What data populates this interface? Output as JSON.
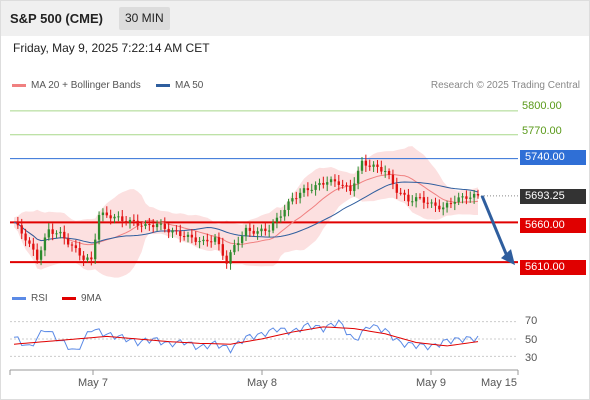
{
  "header": {
    "title": "S&P 500 (CME)",
    "interval": "30 MIN"
  },
  "timestamp": "Friday, May 9, 2025 7:22:14 AM CET",
  "legend": {
    "ma20": "MA 20 + Bollinger Bands",
    "ma50": "MA 50",
    "rsi": "RSI",
    "ma9": "9MA"
  },
  "credit": "Research © 2025 Trading Central",
  "colors": {
    "ma20": "#f08080",
    "ma50": "#2f5e9e",
    "rsi": "#5b8ae6",
    "ma9": "#e00000",
    "resistance_green": "#a8d88a",
    "pivot_blue": "#2f6fd6",
    "support_red": "#e00000",
    "last_price": "#333333",
    "candle_up": "#2e8b2e",
    "candle_down": "#e01010"
  },
  "levels": {
    "r2": "5800.00",
    "r1": "5770.00",
    "pivot": "5740.00",
    "last": "5693.25",
    "s1": "5660.00",
    "s2": "5610.00"
  },
  "rsi_ticks": [
    "70",
    "50",
    "30"
  ],
  "x_labels": [
    "May 7",
    "May 8",
    "May 9",
    "May 15"
  ],
  "chart_data": {
    "type": "candlestick",
    "title": "S&P 500 (CME)",
    "interval": "30 MIN",
    "y_range": [
      5585,
      5820
    ],
    "levels": [
      {
        "value": 5800,
        "kind": "resistance"
      },
      {
        "value": 5770,
        "kind": "resistance"
      },
      {
        "value": 5740,
        "kind": "pivot"
      },
      {
        "value": 5660,
        "kind": "support"
      },
      {
        "value": 5610,
        "kind": "support"
      }
    ],
    "last_price": 5693.25,
    "close_path": [
      {
        "x": 0,
        "y": 5660
      },
      {
        "x": 3,
        "y": 5640
      },
      {
        "x": 6,
        "y": 5615
      },
      {
        "x": 9,
        "y": 5650
      },
      {
        "x": 12,
        "y": 5645
      },
      {
        "x": 15,
        "y": 5630
      },
      {
        "x": 18,
        "y": 5615
      },
      {
        "x": 20,
        "y": 5612
      },
      {
        "x": 22,
        "y": 5670
      },
      {
        "x": 25,
        "y": 5668
      },
      {
        "x": 28,
        "y": 5663
      },
      {
        "x": 31,
        "y": 5660
      },
      {
        "x": 34,
        "y": 5655
      },
      {
        "x": 37,
        "y": 5658
      },
      {
        "x": 40,
        "y": 5650
      },
      {
        "x": 43,
        "y": 5645
      },
      {
        "x": 46,
        "y": 5640
      },
      {
        "x": 49,
        "y": 5635
      },
      {
        "x": 52,
        "y": 5640
      },
      {
        "x": 55,
        "y": 5610
      },
      {
        "x": 57,
        "y": 5630
      },
      {
        "x": 60,
        "y": 5650
      },
      {
        "x": 63,
        "y": 5648
      },
      {
        "x": 66,
        "y": 5652
      },
      {
        "x": 69,
        "y": 5670
      },
      {
        "x": 72,
        "y": 5690
      },
      {
        "x": 75,
        "y": 5700
      },
      {
        "x": 78,
        "y": 5705
      },
      {
        "x": 81,
        "y": 5712
      },
      {
        "x": 84,
        "y": 5710
      },
      {
        "x": 87,
        "y": 5700
      },
      {
        "x": 90,
        "y": 5735
      },
      {
        "x": 93,
        "y": 5730
      },
      {
        "x": 96,
        "y": 5725
      },
      {
        "x": 99,
        "y": 5700
      },
      {
        "x": 102,
        "y": 5688
      },
      {
        "x": 105,
        "y": 5690
      },
      {
        "x": 108,
        "y": 5682
      },
      {
        "x": 111,
        "y": 5678
      },
      {
        "x": 114,
        "y": 5688
      },
      {
        "x": 117,
        "y": 5692
      },
      {
        "x": 120,
        "y": 5693.25
      }
    ],
    "rsi": [
      {
        "x": 0,
        "y": 52
      },
      {
        "x": 4,
        "y": 40
      },
      {
        "x": 8,
        "y": 62
      },
      {
        "x": 12,
        "y": 48
      },
      {
        "x": 16,
        "y": 35
      },
      {
        "x": 20,
        "y": 62
      },
      {
        "x": 24,
        "y": 55
      },
      {
        "x": 28,
        "y": 52
      },
      {
        "x": 32,
        "y": 46
      },
      {
        "x": 36,
        "y": 50
      },
      {
        "x": 40,
        "y": 44
      },
      {
        "x": 44,
        "y": 47
      },
      {
        "x": 48,
        "y": 40
      },
      {
        "x": 52,
        "y": 45
      },
      {
        "x": 56,
        "y": 38
      },
      {
        "x": 60,
        "y": 52
      },
      {
        "x": 64,
        "y": 55
      },
      {
        "x": 68,
        "y": 62
      },
      {
        "x": 72,
        "y": 58
      },
      {
        "x": 76,
        "y": 66
      },
      {
        "x": 80,
        "y": 62
      },
      {
        "x": 84,
        "y": 70
      },
      {
        "x": 88,
        "y": 48
      },
      {
        "x": 92,
        "y": 66
      },
      {
        "x": 96,
        "y": 60
      },
      {
        "x": 100,
        "y": 45
      },
      {
        "x": 104,
        "y": 43
      },
      {
        "x": 108,
        "y": 41
      },
      {
        "x": 112,
        "y": 48
      },
      {
        "x": 116,
        "y": 50
      },
      {
        "x": 120,
        "y": 51
      }
    ],
    "rsi_ma9": [
      {
        "x": 0,
        "y": 44
      },
      {
        "x": 8,
        "y": 47
      },
      {
        "x": 16,
        "y": 50
      },
      {
        "x": 24,
        "y": 53
      },
      {
        "x": 32,
        "y": 50
      },
      {
        "x": 40,
        "y": 47
      },
      {
        "x": 48,
        "y": 45
      },
      {
        "x": 56,
        "y": 44
      },
      {
        "x": 64,
        "y": 50
      },
      {
        "x": 72,
        "y": 58
      },
      {
        "x": 80,
        "y": 64
      },
      {
        "x": 88,
        "y": 62
      },
      {
        "x": 96,
        "y": 56
      },
      {
        "x": 104,
        "y": 46
      },
      {
        "x": 112,
        "y": 42
      },
      {
        "x": 120,
        "y": 47
      }
    ],
    "rsi_range": [
      20,
      80
    ],
    "forecast": {
      "from": 5693.25,
      "to": 5610.0
    }
  }
}
